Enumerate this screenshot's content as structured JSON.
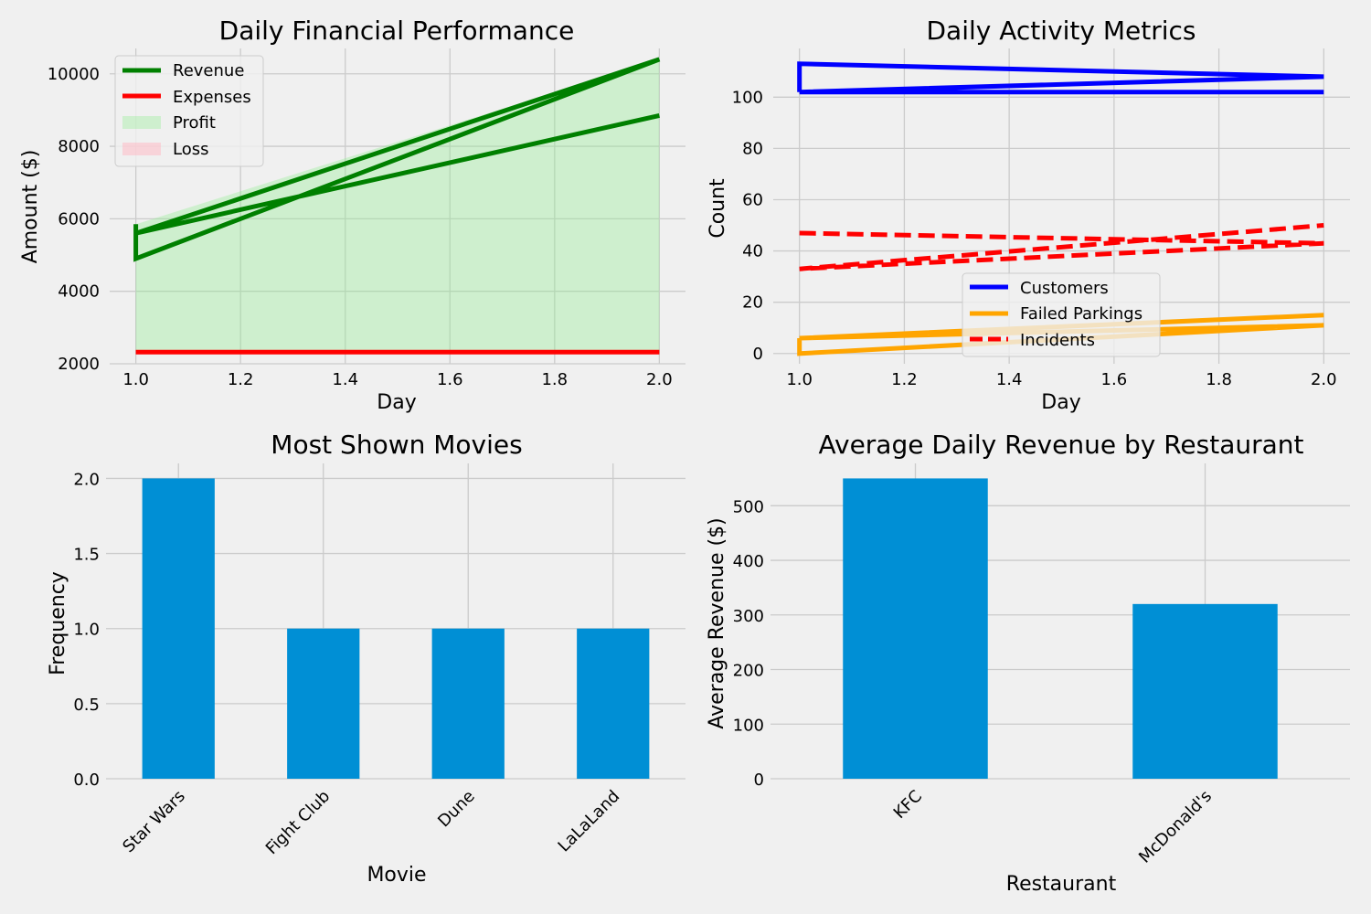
{
  "chart_data": [
    {
      "type": "line",
      "title": "Daily Financial Performance",
      "xlabel": "Day",
      "ylabel": "Amount ($)",
      "xlim": [
        0.95,
        2.05
      ],
      "ylim": [
        2000,
        10700
      ],
      "xticks": [
        1.0,
        1.2,
        1.4,
        1.6,
        1.8,
        2.0
      ],
      "xtick_labels": [
        "1.0",
        "1.2",
        "1.4",
        "1.6",
        "1.8",
        "2.0"
      ],
      "yticks": [
        2000,
        4000,
        6000,
        8000,
        10000
      ],
      "ytick_labels": [
        "2000",
        "4000",
        "6000",
        "8000",
        "10000"
      ],
      "grid": true,
      "legend_position": "top-left",
      "series": [
        {
          "name": "Revenue",
          "color": "#008000",
          "style": "solid",
          "x": [
            1,
            1,
            2,
            1,
            2
          ],
          "y": [
            5850,
            4900,
            10400,
            5600,
            8850
          ]
        },
        {
          "name": "Expenses",
          "color": "#ff0000",
          "style": "solid",
          "x": [
            1,
            1,
            2,
            1,
            2
          ],
          "y": [
            2320,
            2320,
            2320,
            2320,
            2320
          ]
        }
      ],
      "fills": [
        {
          "name": "Profit",
          "color": "#90ee90",
          "opacity": 0.35
        },
        {
          "name": "Loss",
          "color": "#ffb6c1",
          "opacity": 0.5
        }
      ]
    },
    {
      "type": "line",
      "title": "Daily Activity Metrics",
      "xlabel": "Day",
      "ylabel": "Count",
      "xlim": [
        0.95,
        2.05
      ],
      "ylim": [
        -4,
        119
      ],
      "xticks": [
        1.0,
        1.2,
        1.4,
        1.6,
        1.8,
        2.0
      ],
      "xtick_labels": [
        "1.0",
        "1.2",
        "1.4",
        "1.6",
        "1.8",
        "2.0"
      ],
      "yticks": [
        0,
        20,
        40,
        60,
        80,
        100
      ],
      "ytick_labels": [
        "0",
        "20",
        "40",
        "60",
        "80",
        "100"
      ],
      "grid": true,
      "legend_position": "lower-center",
      "series": [
        {
          "name": "Customers",
          "color": "#0000ff",
          "style": "solid",
          "x": [
            1,
            1,
            2,
            1,
            2
          ],
          "y": [
            102,
            113,
            108,
            102,
            102
          ]
        },
        {
          "name": "Failed Parkings",
          "color": "#ffa500",
          "style": "solid",
          "x": [
            1,
            1,
            2,
            1,
            2
          ],
          "y": [
            6,
            0,
            11,
            6,
            15
          ]
        },
        {
          "name": "Incidents",
          "color": "#ff0000",
          "style": "dashed",
          "x": [
            1,
            2,
            1,
            2
          ],
          "y": [
            47,
            43,
            33,
            50
          ]
        }
      ]
    },
    {
      "type": "bar",
      "title": "Most Shown Movies",
      "xlabel": "Movie",
      "ylabel": "Frequency",
      "categories": [
        "Star Wars",
        "Fight Club",
        "Dune",
        "LaLaLand"
      ],
      "values": [
        2,
        1,
        1,
        1
      ],
      "ylim": [
        0,
        2.1
      ],
      "yticks": [
        0,
        0.5,
        1.0,
        1.5,
        2.0
      ],
      "ytick_labels": [
        "0.0",
        "0.5",
        "1.0",
        "1.5",
        "2.0"
      ],
      "color": "#008fd5",
      "grid": true
    },
    {
      "type": "bar",
      "title": "Average Daily Revenue by Restaurant",
      "xlabel": "Restaurant",
      "ylabel": "Average Revenue ($)",
      "categories": [
        "KFC",
        "McDonald's"
      ],
      "values": [
        550,
        320
      ],
      "ylim": [
        0,
        577.5
      ],
      "yticks": [
        0,
        100,
        200,
        300,
        400,
        500
      ],
      "ytick_labels": [
        "0",
        "100",
        "200",
        "300",
        "400",
        "500"
      ],
      "color": "#008fd5",
      "grid": true
    }
  ]
}
